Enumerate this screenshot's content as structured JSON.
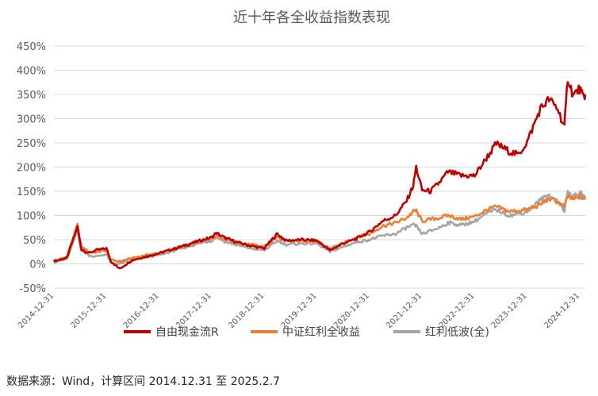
{
  "chart_data": {
    "type": "line",
    "title": "近十年各全收益指数表现",
    "xlabel": "",
    "ylabel": "",
    "ylim": [
      -50,
      450
    ],
    "yticks": [
      "-50%",
      "0%",
      "50%",
      "100%",
      "150%",
      "200%",
      "250%",
      "300%",
      "350%",
      "400%",
      "450%"
    ],
    "xticks": [
      "2014-12-31",
      "2015-12-31",
      "2016-12-31",
      "2017-12-31",
      "2018-12-31",
      "2019-12-31",
      "2020-12-31",
      "2021-12-31",
      "2022-12-31",
      "2023-12-31",
      "2024-12-31"
    ],
    "x_range": [
      "2014-12-31",
      "2025-02-07"
    ],
    "grid": "horizontal",
    "legend_position": "bottom",
    "series": [
      {
        "name": "自由现金流R",
        "color": "#C00000",
        "points": [
          [
            "2014-12-31",
            6
          ],
          [
            "2015-03-31",
            12
          ],
          [
            "2015-05-15",
            52
          ],
          [
            "2015-06-12",
            76
          ],
          [
            "2015-07-10",
            30
          ],
          [
            "2015-08-31",
            22
          ],
          [
            "2015-10-15",
            28
          ],
          [
            "2015-12-31",
            32
          ],
          [
            "2016-01-31",
            5
          ],
          [
            "2016-03-31",
            -10
          ],
          [
            "2016-06-30",
            8
          ],
          [
            "2016-09-30",
            15
          ],
          [
            "2016-12-31",
            22
          ],
          [
            "2017-03-31",
            30
          ],
          [
            "2017-06-30",
            38
          ],
          [
            "2017-09-30",
            47
          ],
          [
            "2017-12-31",
            55
          ],
          [
            "2018-01-31",
            64
          ],
          [
            "2018-03-31",
            54
          ],
          [
            "2018-06-30",
            44
          ],
          [
            "2018-09-30",
            37
          ],
          [
            "2018-12-31",
            32
          ],
          [
            "2019-02-28",
            52
          ],
          [
            "2019-03-31",
            62
          ],
          [
            "2019-05-31",
            48
          ],
          [
            "2019-09-30",
            50
          ],
          [
            "2019-12-31",
            48
          ],
          [
            "2020-03-31",
            28
          ],
          [
            "2020-06-30",
            42
          ],
          [
            "2020-09-30",
            52
          ],
          [
            "2020-12-31",
            66
          ],
          [
            "2021-03-31",
            88
          ],
          [
            "2021-06-30",
            100
          ],
          [
            "2021-09-15",
            130
          ],
          [
            "2021-10-31",
            162
          ],
          [
            "2021-11-20",
            200
          ],
          [
            "2021-12-31",
            152
          ],
          [
            "2022-02-28",
            150
          ],
          [
            "2022-04-30",
            168
          ],
          [
            "2022-06-30",
            190
          ],
          [
            "2022-09-30",
            182
          ],
          [
            "2022-12-31",
            182
          ],
          [
            "2023-03-31",
            222
          ],
          [
            "2023-05-31",
            248
          ],
          [
            "2023-08-31",
            232
          ],
          [
            "2023-10-31",
            225
          ],
          [
            "2023-12-31",
            252
          ],
          [
            "2024-03-31",
            320
          ],
          [
            "2024-05-31",
            340
          ],
          [
            "2024-07-31",
            320
          ],
          [
            "2024-09-15",
            282
          ],
          [
            "2024-10-08",
            385
          ],
          [
            "2024-11-15",
            348
          ],
          [
            "2024-12-31",
            362
          ],
          [
            "2025-01-20",
            345
          ],
          [
            "2025-02-07",
            350
          ]
        ]
      },
      {
        "name": "中证红利全收益",
        "color": "#ED7D31",
        "points": [
          [
            "2014-12-31",
            5
          ],
          [
            "2015-03-31",
            15
          ],
          [
            "2015-05-15",
            55
          ],
          [
            "2015-06-12",
            80
          ],
          [
            "2015-07-10",
            35
          ],
          [
            "2015-08-31",
            25
          ],
          [
            "2015-10-15",
            24
          ],
          [
            "2015-12-31",
            28
          ],
          [
            "2016-01-31",
            8
          ],
          [
            "2016-03-31",
            5
          ],
          [
            "2016-06-30",
            12
          ],
          [
            "2016-09-30",
            18
          ],
          [
            "2016-12-31",
            22
          ],
          [
            "2017-03-31",
            30
          ],
          [
            "2017-06-30",
            38
          ],
          [
            "2017-09-30",
            45
          ],
          [
            "2017-12-31",
            52
          ],
          [
            "2018-01-31",
            60
          ],
          [
            "2018-03-31",
            52
          ],
          [
            "2018-06-30",
            44
          ],
          [
            "2018-09-30",
            40
          ],
          [
            "2018-12-31",
            35
          ],
          [
            "2019-02-28",
            48
          ],
          [
            "2019-03-31",
            56
          ],
          [
            "2019-05-31",
            46
          ],
          [
            "2019-09-30",
            48
          ],
          [
            "2019-12-31",
            46
          ],
          [
            "2020-03-31",
            32
          ],
          [
            "2020-06-30",
            42
          ],
          [
            "2020-09-30",
            55
          ],
          [
            "2020-12-31",
            62
          ],
          [
            "2021-03-31",
            78
          ],
          [
            "2021-06-30",
            85
          ],
          [
            "2021-09-15",
            95
          ],
          [
            "2021-10-31",
            108
          ],
          [
            "2021-11-20",
            110
          ],
          [
            "2021-12-31",
            88
          ],
          [
            "2022-02-28",
            92
          ],
          [
            "2022-04-30",
            95
          ],
          [
            "2022-06-30",
            100
          ],
          [
            "2022-09-30",
            92
          ],
          [
            "2022-12-31",
            98
          ],
          [
            "2023-03-31",
            112
          ],
          [
            "2023-05-31",
            118
          ],
          [
            "2023-08-31",
            108
          ],
          [
            "2023-10-31",
            110
          ],
          [
            "2023-12-31",
            112
          ],
          [
            "2024-03-31",
            122
          ],
          [
            "2024-05-31",
            135
          ],
          [
            "2024-07-31",
            128
          ],
          [
            "2024-09-15",
            118
          ],
          [
            "2024-10-08",
            140
          ],
          [
            "2024-11-15",
            132
          ],
          [
            "2024-12-31",
            140
          ],
          [
            "2025-01-20",
            135
          ],
          [
            "2025-02-07",
            133
          ]
        ]
      },
      {
        "name": "红利低波(全)",
        "color": "#A5A5A5",
        "points": [
          [
            "2014-12-31",
            3
          ],
          [
            "2015-03-31",
            10
          ],
          [
            "2015-05-15",
            45
          ],
          [
            "2015-06-12",
            68
          ],
          [
            "2015-07-10",
            28
          ],
          [
            "2015-08-31",
            18
          ],
          [
            "2015-10-15",
            15
          ],
          [
            "2015-12-31",
            20
          ],
          [
            "2016-01-31",
            2
          ],
          [
            "2016-03-31",
            0
          ],
          [
            "2016-06-30",
            8
          ],
          [
            "2016-09-30",
            14
          ],
          [
            "2016-12-31",
            18
          ],
          [
            "2017-03-31",
            26
          ],
          [
            "2017-06-30",
            34
          ],
          [
            "2017-09-30",
            42
          ],
          [
            "2017-12-31",
            48
          ],
          [
            "2018-01-31",
            56
          ],
          [
            "2018-03-31",
            46
          ],
          [
            "2018-06-30",
            38
          ],
          [
            "2018-09-30",
            32
          ],
          [
            "2018-12-31",
            28
          ],
          [
            "2019-02-28",
            40
          ],
          [
            "2019-03-31",
            48
          ],
          [
            "2019-05-31",
            40
          ],
          [
            "2019-09-30",
            42
          ],
          [
            "2019-12-31",
            42
          ],
          [
            "2020-03-31",
            25
          ],
          [
            "2020-06-30",
            35
          ],
          [
            "2020-09-30",
            45
          ],
          [
            "2020-12-31",
            50
          ],
          [
            "2021-03-31",
            58
          ],
          [
            "2021-06-30",
            62
          ],
          [
            "2021-09-15",
            75
          ],
          [
            "2021-10-31",
            80
          ],
          [
            "2021-11-20",
            78
          ],
          [
            "2021-12-31",
            62
          ],
          [
            "2022-02-28",
            68
          ],
          [
            "2022-04-30",
            75
          ],
          [
            "2022-06-30",
            85
          ],
          [
            "2022-09-30",
            80
          ],
          [
            "2022-12-31",
            88
          ],
          [
            "2023-03-31",
            105
          ],
          [
            "2023-05-31",
            112
          ],
          [
            "2023-08-31",
            100
          ],
          [
            "2023-10-31",
            103
          ],
          [
            "2023-12-31",
            108
          ],
          [
            "2024-03-31",
            132
          ],
          [
            "2024-05-31",
            142
          ],
          [
            "2024-07-31",
            130
          ],
          [
            "2024-09-15",
            110
          ],
          [
            "2024-10-08",
            150
          ],
          [
            "2024-11-15",
            138
          ],
          [
            "2024-12-31",
            148
          ],
          [
            "2025-01-20",
            140
          ],
          [
            "2025-02-07",
            140
          ]
        ]
      }
    ]
  },
  "footer": {
    "source": "数据来源：Wind，计算区间 2014.12.31 至 2025.2.7"
  }
}
